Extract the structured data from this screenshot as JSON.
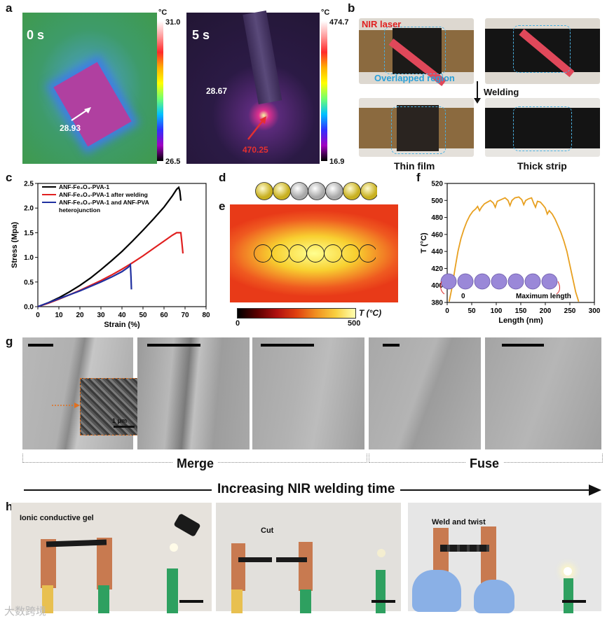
{
  "panels": {
    "a": {
      "letter": "a",
      "frame0": {
        "time": "0 s",
        "unit": "°C",
        "max": "31.0",
        "min": "26.5",
        "reading": "28.93"
      },
      "frame5": {
        "time": "5 s",
        "unit": "°C",
        "max": "474.7",
        "min": "16.9",
        "reading_bg": "28.67",
        "reading_hot": "470.25"
      }
    },
    "b": {
      "letter": "b",
      "nir_laser": "NIR laser",
      "overlapped": "Overlapped region",
      "welding": "Welding",
      "thin_film": "Thin film",
      "thick_strip": "Thick strip"
    },
    "c": {
      "letter": "c"
    },
    "d": {
      "letter": "d"
    },
    "e": {
      "letter": "e",
      "cbar_min": "0",
      "cbar_max": "500",
      "cbar_label": "T (°C)"
    },
    "f": {
      "letter": "f",
      "inset_start": "0",
      "inset_end": "Maximum length"
    },
    "g": {
      "letter": "g",
      "inset_scale": "1 μm",
      "merge": "Merge",
      "fuse": "Fuse",
      "arrow_text": "Increasing NIR welding time"
    },
    "h": {
      "letter": "h",
      "photo1": "Ionic conductive gel",
      "photo2": "Cut",
      "photo3": "Weld and twist"
    }
  },
  "watermark": "大数跨境",
  "colors": {
    "red": "#e02020",
    "blue": "#2030a0",
    "black": "#000000",
    "orange": "#e8a020",
    "cyan": "#2aa0d8"
  },
  "chart_data": [
    {
      "type": "line",
      "panel": "c",
      "xlabel": "Strain (%)",
      "ylabel": "Stress (Mpa)",
      "xlim": [
        0,
        80
      ],
      "ylim": [
        0,
        2.5
      ],
      "xticks": [
        "0",
        "10",
        "20",
        "30",
        "40",
        "50",
        "60",
        "70",
        "80"
      ],
      "yticks": [
        "0.0",
        "0.5",
        "1.0",
        "1.5",
        "2.0",
        "2.5"
      ],
      "legend": [
        "ANF-Fe3O4-PVA-1",
        "ANF-Fe3O4-PVA-1 after welding",
        "ANF-Fe3O4-PVA-1 and ANF-PVA heterojunction"
      ],
      "legend_lines": [
        "ANF-Fe₃O₄-PVA-1",
        "ANF-Fe₃O₄-PVA-1 after welding",
        "ANF-Fe₃O₄-PVA-1 and ANF-PVA",
        "heterojunction"
      ],
      "series": [
        {
          "name": "ANF-Fe3O4-PVA-1",
          "color": "#000000",
          "points": [
            [
              0,
              0
            ],
            [
              5,
              0.08
            ],
            [
              10,
              0.18
            ],
            [
              15,
              0.3
            ],
            [
              20,
              0.43
            ],
            [
              25,
              0.58
            ],
            [
              30,
              0.75
            ],
            [
              35,
              0.93
            ],
            [
              40,
              1.12
            ],
            [
              45,
              1.33
            ],
            [
              50,
              1.55
            ],
            [
              55,
              1.78
            ],
            [
              60,
              2.02
            ],
            [
              64,
              2.25
            ],
            [
              66,
              2.38
            ],
            [
              67,
              2.42
            ],
            [
              67.5,
              2.35
            ],
            [
              68,
              2.15
            ]
          ]
        },
        {
          "name": "ANF-Fe3O4-PVA-1 after welding",
          "color": "#e02020",
          "points": [
            [
              0,
              0
            ],
            [
              5,
              0.07
            ],
            [
              10,
              0.15
            ],
            [
              15,
              0.24
            ],
            [
              20,
              0.33
            ],
            [
              25,
              0.43
            ],
            [
              30,
              0.53
            ],
            [
              35,
              0.64
            ],
            [
              40,
              0.76
            ],
            [
              45,
              0.89
            ],
            [
              50,
              1.03
            ],
            [
              55,
              1.18
            ],
            [
              60,
              1.33
            ],
            [
              64,
              1.45
            ],
            [
              66,
              1.5
            ],
            [
              68,
              1.5
            ],
            [
              68.5,
              1.3
            ],
            [
              69,
              1.08
            ]
          ]
        },
        {
          "name": "ANF-Fe3O4-PVA-1 and ANF-PVA heterojunction",
          "color": "#2030a0",
          "points": [
            [
              0,
              0
            ],
            [
              5,
              0.08
            ],
            [
              10,
              0.16
            ],
            [
              15,
              0.24
            ],
            [
              20,
              0.32
            ],
            [
              25,
              0.41
            ],
            [
              30,
              0.5
            ],
            [
              35,
              0.6
            ],
            [
              40,
              0.71
            ],
            [
              43,
              0.8
            ],
            [
              44,
              0.85
            ],
            [
              44.3,
              0.6
            ],
            [
              44.5,
              0.35
            ]
          ]
        }
      ]
    },
    {
      "type": "line",
      "panel": "f",
      "xlabel": "Length (nm)",
      "ylabel": "T (°C)",
      "xlim": [
        0,
        300
      ],
      "ylim": [
        380,
        520
      ],
      "xticks": [
        "0",
        "50",
        "100",
        "150",
        "200",
        "250",
        "300"
      ],
      "yticks": [
        "380",
        "400",
        "420",
        "440",
        "460",
        "480",
        "500",
        "520"
      ],
      "series": [
        {
          "name": "T profile",
          "color": "#e8a020",
          "points": [
            [
              4,
              381
            ],
            [
              10,
              398
            ],
            [
              16,
              420
            ],
            [
              22,
              440
            ],
            [
              28,
              455
            ],
            [
              34,
              466
            ],
            [
              40,
              475
            ],
            [
              46,
              482
            ],
            [
              52,
              487
            ],
            [
              58,
              490
            ],
            [
              62,
              493
            ],
            [
              66,
              488
            ],
            [
              70,
              492
            ],
            [
              76,
              496
            ],
            [
              82,
              498
            ],
            [
              88,
              500
            ],
            [
              94,
              497
            ],
            [
              98,
              492
            ],
            [
              102,
              499
            ],
            [
              110,
              501
            ],
            [
              118,
              503
            ],
            [
              124,
              500
            ],
            [
              128,
              494
            ],
            [
              132,
              500
            ],
            [
              138,
              503
            ],
            [
              146,
              504
            ],
            [
              152,
              501
            ],
            [
              156,
              495
            ],
            [
              160,
              500
            ],
            [
              166,
              502
            ],
            [
              172,
              503
            ],
            [
              176,
              497
            ],
            [
              180,
              492
            ],
            [
              184,
              499
            ],
            [
              190,
              498
            ],
            [
              196,
              494
            ],
            [
              200,
              491
            ],
            [
              204,
              484
            ],
            [
              208,
              488
            ],
            [
              214,
              484
            ],
            [
              220,
              478
            ],
            [
              226,
              470
            ],
            [
              232,
              462
            ],
            [
              238,
              452
            ],
            [
              244,
              440
            ],
            [
              250,
              424
            ],
            [
              256,
              408
            ],
            [
              262,
              392
            ],
            [
              268,
              381
            ]
          ]
        }
      ]
    }
  ]
}
